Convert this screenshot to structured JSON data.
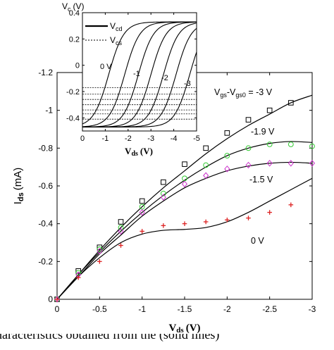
{
  "chart_data": [
    {
      "type": "line",
      "xlabel_main": "V",
      "xlabel_sub": "ds",
      "xlabel_unit": "(V)",
      "ylabel_main": "I",
      "ylabel_sub": "ds",
      "ylabel_unit": "(mA)",
      "xlim": [
        0,
        -3
      ],
      "ylim": [
        0,
        -1.2
      ],
      "x_ticks": [
        0,
        -0.5,
        -1,
        -1.5,
        -2,
        -2.5,
        -3
      ],
      "x_tick_labels": [
        "0",
        "-0.5",
        "-1",
        "-1.5",
        "-2",
        "-2.5",
        "-3"
      ],
      "y_ticks": [
        0,
        -0.2,
        -0.4,
        -0.6,
        -0.8,
        -1,
        -1.2
      ],
      "y_tick_labels": [
        "0",
        "-0.2",
        "-0.4",
        "-0.6",
        "-0.8",
        "-1",
        "-1.2"
      ],
      "legend_title": {
        "p1": "V",
        "s1": "gs",
        "p2": "-V",
        "s2": "gs0",
        "p3": " = -3 V"
      },
      "annotations": [
        "-1.9 V",
        "-1.5 V",
        "0 V"
      ],
      "colors": {
        "square": "#000000",
        "circle": "#33cc33",
        "diamond": "#cc33cc",
        "plus": "#dd2222",
        "line": "#000000"
      },
      "series": [
        {
          "label": "-3 V",
          "marker": "square",
          "points": {
            "x": [
              0,
              -0.25,
              -0.5,
              -0.75,
              -1,
              -1.25,
              -1.5,
              -1.75,
              -2,
              -2.25,
              -2.5,
              -2.75
            ],
            "y": [
              0,
              -0.15,
              -0.275,
              -0.41,
              -0.52,
              -0.62,
              -0.715,
              -0.8,
              -0.88,
              -0.95,
              -1.0,
              -1.04
            ]
          },
          "model": {
            "x": [
              0,
              -0.25,
              -0.5,
              -0.75,
              -1,
              -1.25,
              -1.5,
              -1.75,
              -2,
              -2.25,
              -2.5,
              -2.75,
              -3
            ],
            "y": [
              0,
              -0.13,
              -0.26,
              -0.38,
              -0.49,
              -0.59,
              -0.68,
              -0.77,
              -0.85,
              -0.92,
              -0.98,
              -1.04,
              -1.08
            ]
          }
        },
        {
          "label": "-1.9 V",
          "marker": "circle",
          "points": {
            "x": [
              0,
              -0.25,
              -0.5,
              -0.75,
              -1,
              -1.25,
              -1.5,
              -1.75,
              -2,
              -2.25,
              -2.5,
              -2.75,
              -3
            ],
            "y": [
              0,
              -0.14,
              -0.265,
              -0.38,
              -0.49,
              -0.56,
              -0.64,
              -0.71,
              -0.76,
              -0.8,
              -0.82,
              -0.82,
              -0.81
            ]
          },
          "model": {
            "x": [
              0,
              -0.25,
              -0.5,
              -0.75,
              -1,
              -1.25,
              -1.5,
              -1.75,
              -2,
              -2.25,
              -2.5,
              -2.75,
              -3
            ],
            "y": [
              0,
              -0.13,
              -0.25,
              -0.36,
              -0.46,
              -0.55,
              -0.63,
              -0.7,
              -0.76,
              -0.8,
              -0.825,
              -0.835,
              -0.83
            ]
          }
        },
        {
          "label": "-1.5 V",
          "marker": "diamond",
          "points": {
            "x": [
              0,
              -0.25,
              -0.5,
              -0.75,
              -1,
              -1.25,
              -1.5,
              -1.75,
              -2,
              -2.25,
              -2.5,
              -2.75,
              -3
            ],
            "y": [
              0,
              -0.13,
              -0.255,
              -0.36,
              -0.46,
              -0.54,
              -0.61,
              -0.655,
              -0.69,
              -0.71,
              -0.72,
              -0.72,
              -0.72
            ]
          },
          "model": {
            "x": [
              0,
              -0.25,
              -0.5,
              -0.75,
              -1,
              -1.25,
              -1.5,
              -1.75,
              -2,
              -2.25,
              -2.5,
              -2.75,
              -3
            ],
            "y": [
              0,
              -0.12,
              -0.24,
              -0.34,
              -0.44,
              -0.52,
              -0.59,
              -0.64,
              -0.68,
              -0.705,
              -0.72,
              -0.725,
              -0.72
            ]
          }
        },
        {
          "label": "0 V",
          "marker": "plus",
          "points": {
            "x": [
              0,
              -0.25,
              -0.5,
              -0.75,
              -1,
              -1.25,
              -1.5,
              -1.75,
              -2,
              -2.25,
              -2.5,
              -2.75
            ],
            "y": [
              0,
              -0.115,
              -0.2,
              -0.285,
              -0.36,
              -0.39,
              -0.4,
              -0.41,
              -0.42,
              -0.43,
              -0.46,
              -0.5
            ]
          },
          "model": {
            "x": [
              0,
              -0.25,
              -0.5,
              -0.75,
              -1,
              -1.25,
              -1.5,
              -1.75,
              -2,
              -2.25,
              -2.5,
              -2.75,
              -3
            ],
            "y": [
              0,
              -0.12,
              -0.22,
              -0.3,
              -0.345,
              -0.365,
              -0.37,
              -0.38,
              -0.41,
              -0.46,
              -0.52,
              -0.58,
              -0.64
            ]
          }
        }
      ]
    },
    {
      "type": "line",
      "ylabel_main": "V",
      "ylabel_sub": "c",
      "ylabel_unit": "(V)",
      "xlabel_main": "V",
      "xlabel_sub": "ds",
      "xlabel_unit": "(V)",
      "xlim": [
        0,
        -5
      ],
      "ylim": [
        -0.5,
        0.4
      ],
      "x_ticks": [
        0,
        -1,
        -2,
        -3,
        -4,
        -5
      ],
      "x_tick_labels": [
        "0",
        "-1",
        "-2",
        "-3",
        "-4",
        "-5"
      ],
      "y_ticks": [
        0.4,
        0.2,
        0,
        -0.2,
        -0.4
      ],
      "y_tick_labels": [
        "0.4",
        "0.2",
        "0",
        "-0.2",
        "-0.4"
      ],
      "legend": [
        {
          "p": "V",
          "s": "cd",
          "style": "solid"
        },
        {
          "p": "V",
          "s": "cs",
          "style": "dashed"
        }
      ],
      "curve_labels": [
        "0 V",
        "-1",
        "-2",
        "-3"
      ],
      "vcs_levels": [
        -0.17,
        -0.22,
        -0.26,
        -0.3,
        -0.34,
        -0.37,
        -0.41
      ],
      "vcd_midpoints": [
        -1.15,
        -1.85,
        -2.45,
        -3.0,
        -3.55,
        -4.1,
        -4.7
      ],
      "vcd_low": -0.47,
      "vcd_high": 0.33
    }
  ],
  "caption": {
    "text": "haracteristics obtained from the (solid lines)"
  }
}
